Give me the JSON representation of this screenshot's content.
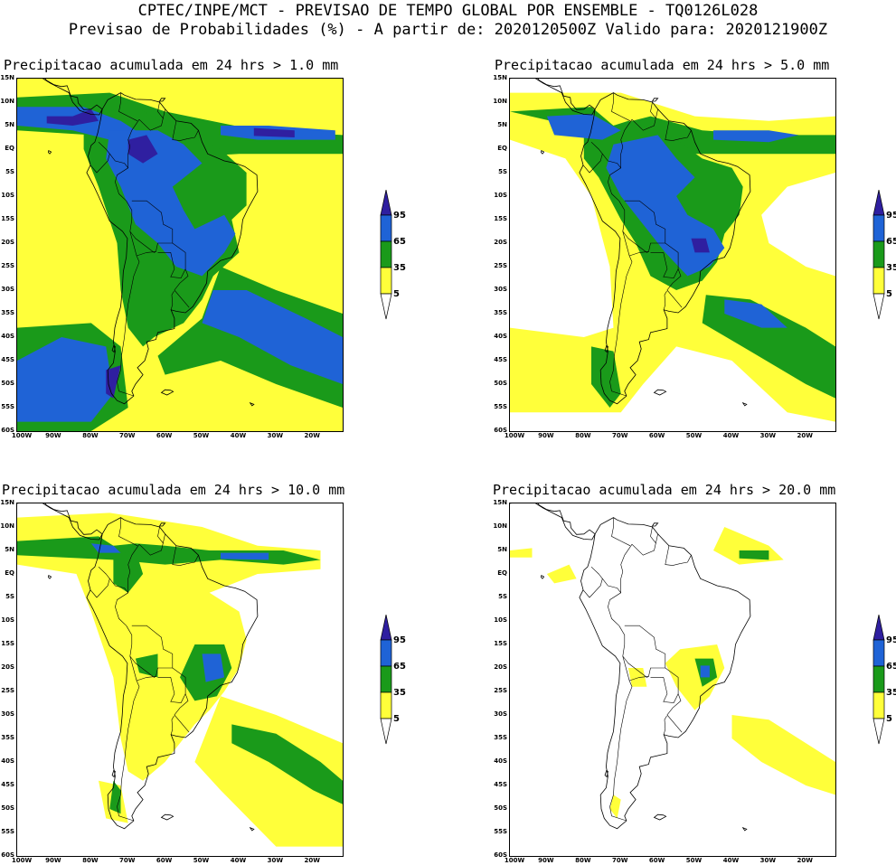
{
  "header": {
    "line1": "CPTEC/INPE/MCT - PREVISAO DE TEMPO GLOBAL POR ENSEMBLE - TQ0126L028",
    "line2": "Previsao de Probabilidades (%) -  A partir de: 2020120500Z  Valido para: 2020121900Z"
  },
  "colors": {
    "c5": "#ffff3a",
    "c35": "#1a9a1a",
    "c65": "#1f63d6",
    "c95": "#2f1fa0",
    "coast": "#000000"
  },
  "legend": {
    "labels": [
      "95",
      "65",
      "35",
      "5"
    ]
  },
  "axes": {
    "lat_labels": [
      "15N",
      "10N",
      "5N",
      "EQ",
      "5S",
      "10S",
      "15S",
      "20S",
      "25S",
      "30S",
      "35S",
      "40S",
      "45S",
      "50S",
      "55S",
      "60S"
    ],
    "lon_labels": [
      "100W",
      "90W",
      "80W",
      "70W",
      "60W",
      "50W",
      "40W",
      "30W",
      "20W"
    ]
  },
  "panels": [
    {
      "title": "Precipitacao acumulada em 24 hrs > 1.0 mm",
      "threshold_mm": 1.0
    },
    {
      "title": "Precipitacao acumulada em 24 hrs > 5.0 mm",
      "threshold_mm": 5.0
    },
    {
      "title": "Precipitacao acumulada em 24 hrs > 10.0 mm",
      "threshold_mm": 10.0
    },
    {
      "title": "Precipitacao acumulada em 24 hrs > 20.0 mm",
      "threshold_mm": 20.0
    }
  ]
}
